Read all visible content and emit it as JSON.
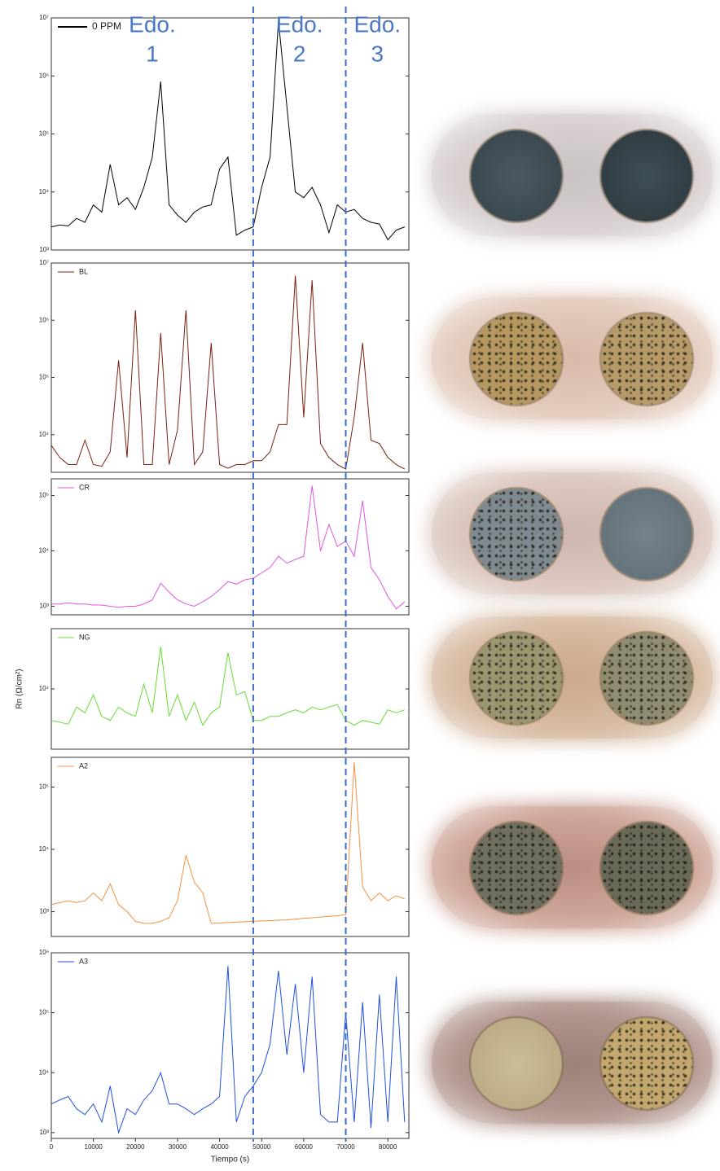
{
  "chart_data": [
    {
      "type": "line",
      "yscale": "log",
      "xlim": [
        0,
        85000
      ],
      "ylim": [
        1000,
        10000000
      ],
      "yticks": [
        {
          "value": 1000,
          "label": "10³"
        },
        {
          "value": 10000,
          "label": "10⁴"
        },
        {
          "value": 100000,
          "label": "10⁵"
        },
        {
          "value": 1000000,
          "label": "10⁶"
        },
        {
          "value": 10000000,
          "label": "10⁷"
        }
      ],
      "vlines": [
        48000,
        70000
      ],
      "annotations": [
        [
          "Edo.",
          "1"
        ],
        [
          "Edo.",
          "2"
        ],
        [
          "Edo.",
          "3"
        ]
      ],
      "x": [
        0,
        2000,
        4000,
        6000,
        8000,
        10000,
        12000,
        14000,
        16000,
        18000,
        20000,
        22000,
        24000,
        26000,
        28000,
        30000,
        32000,
        34000,
        36000,
        38000,
        40000,
        42000,
        44000,
        46000,
        48000,
        50000,
        52000,
        54000,
        56000,
        58000,
        60000,
        62000,
        64000,
        66000,
        68000,
        70000,
        72000,
        74000,
        76000,
        78000,
        80000,
        82000,
        84000
      ],
      "series": [
        {
          "name": "0 PPM",
          "color": "#000000",
          "values": [
            2500,
            2700,
            2600,
            3500,
            3000,
            6000,
            4500,
            30000,
            6000,
            8000,
            5000,
            12000,
            40000,
            800000,
            6000,
            4000,
            3000,
            4500,
            5500,
            6000,
            25000,
            40000,
            1800,
            2200,
            2500,
            12000,
            40000,
            9000000,
            300000,
            10000,
            8000,
            12000,
            6000,
            2000,
            6000,
            4500,
            5000,
            3500,
            3000,
            2800,
            1500,
            2200,
            2500
          ]
        }
      ]
    },
    {
      "type": "line",
      "yscale": "log",
      "xlim": [
        0,
        85000
      ],
      "ylim": [
        2200,
        10000000
      ],
      "yticks": [
        {
          "value": 10000,
          "label": "10⁴"
        },
        {
          "value": 100000,
          "label": "10⁵"
        },
        {
          "value": 1000000,
          "label": "10⁶"
        },
        {
          "value": 10000000,
          "label": "10⁷"
        }
      ],
      "x": [
        0,
        2000,
        4000,
        6000,
        8000,
        10000,
        12000,
        14000,
        16000,
        18000,
        20000,
        22000,
        24000,
        26000,
        28000,
        30000,
        32000,
        34000,
        36000,
        38000,
        40000,
        42000,
        44000,
        46000,
        48000,
        50000,
        52000,
        54000,
        56000,
        58000,
        60000,
        62000,
        64000,
        66000,
        68000,
        70000,
        72000,
        74000,
        76000,
        78000,
        80000,
        82000,
        84000
      ],
      "series": [
        {
          "name": "BL",
          "color": "#7a1f10",
          "values": [
            6500,
            4000,
            3000,
            3000,
            8000,
            3000,
            2800,
            5000,
            200000,
            4000,
            1500000,
            3000,
            3000,
            600000,
            3000,
            12000,
            1500000,
            3000,
            5000,
            400000,
            3000,
            2600,
            3000,
            3000,
            3500,
            3500,
            5000,
            15000,
            15000,
            6000000,
            20000,
            5000000,
            7000,
            4000,
            3000,
            2500,
            20000,
            400000,
            8000,
            7000,
            4000,
            3000,
            2500
          ]
        }
      ]
    },
    {
      "type": "line",
      "yscale": "log",
      "xlim": [
        0,
        85000
      ],
      "ylim": [
        700,
        200000
      ],
      "yticks": [
        {
          "value": 1000,
          "label": "10³"
        },
        {
          "value": 10000,
          "label": "10⁴"
        },
        {
          "value": 100000,
          "label": "10⁵"
        }
      ],
      "x": [
        0,
        2000,
        4000,
        6000,
        8000,
        10000,
        12000,
        14000,
        16000,
        18000,
        20000,
        22000,
        24000,
        26000,
        28000,
        30000,
        32000,
        34000,
        36000,
        38000,
        40000,
        42000,
        44000,
        46000,
        48000,
        50000,
        52000,
        54000,
        56000,
        58000,
        60000,
        62000,
        64000,
        66000,
        68000,
        70000,
        72000,
        74000,
        76000,
        78000,
        80000,
        82000,
        84000
      ],
      "series": [
        {
          "name": "CR",
          "color": "#e055e0",
          "values": [
            1100,
            1100,
            1150,
            1100,
            1100,
            1050,
            1050,
            1000,
            950,
            1000,
            1000,
            1100,
            1300,
            2600,
            1800,
            1300,
            1100,
            1000,
            1200,
            1500,
            2000,
            2800,
            2500,
            3000,
            3200,
            4000,
            5000,
            8000,
            6000,
            7000,
            8000,
            150000,
            10000,
            30000,
            12000,
            15000,
            8000,
            80000,
            5000,
            3000,
            1500,
            900,
            1200
          ]
        }
      ]
    },
    {
      "type": "line",
      "yscale": "log",
      "xlim": [
        0,
        85000
      ],
      "ylim": [
        1000,
        100000
      ],
      "yticks": [
        {
          "value": 10000,
          "label": "10⁴"
        }
      ],
      "ylabel": "Rn (Ω/cm²)",
      "x": [
        0,
        2000,
        4000,
        6000,
        8000,
        10000,
        12000,
        14000,
        16000,
        18000,
        20000,
        22000,
        24000,
        26000,
        28000,
        30000,
        32000,
        34000,
        36000,
        38000,
        40000,
        42000,
        44000,
        46000,
        48000,
        50000,
        52000,
        54000,
        56000,
        58000,
        60000,
        62000,
        64000,
        66000,
        68000,
        70000,
        72000,
        74000,
        76000,
        78000,
        80000,
        82000,
        84000
      ],
      "series": [
        {
          "name": "NG",
          "color": "#66dd33",
          "values": [
            3000,
            2800,
            2600,
            5000,
            4000,
            8000,
            3500,
            3000,
            5000,
            4000,
            3500,
            12000,
            4000,
            50000,
            3500,
            8000,
            3000,
            6000,
            2500,
            4000,
            5000,
            40000,
            8000,
            9000,
            3000,
            3000,
            3500,
            3500,
            4000,
            4500,
            4000,
            5000,
            4500,
            5000,
            5500,
            3000,
            2500,
            3000,
            2800,
            2600,
            4500,
            4000,
            4500
          ]
        }
      ]
    },
    {
      "type": "line",
      "yscale": "log",
      "xlim": [
        0,
        85000
      ],
      "ylim": [
        400,
        300000
      ],
      "yticks": [
        {
          "value": 1000,
          "label": "10³"
        },
        {
          "value": 10000,
          "label": "10⁴"
        },
        {
          "value": 100000,
          "label": "10⁵"
        }
      ],
      "x": [
        0,
        2000,
        4000,
        6000,
        8000,
        10000,
        12000,
        14000,
        16000,
        18000,
        20000,
        22000,
        24000,
        26000,
        28000,
        30000,
        32000,
        34000,
        36000,
        38000,
        40000,
        42000,
        44000,
        46000,
        48000,
        50000,
        52000,
        54000,
        56000,
        58000,
        60000,
        62000,
        64000,
        66000,
        68000,
        70000,
        72000,
        74000,
        76000,
        78000,
        80000,
        82000,
        84000
      ],
      "series": [
        {
          "name": "A2",
          "color": "#f39040",
          "values": [
            1300,
            1400,
            1500,
            1400,
            1500,
            2000,
            1500,
            2800,
            1300,
            1000,
            700,
            650,
            650,
            700,
            800,
            1500,
            8000,
            3000,
            2000,
            650,
            660,
            670,
            680,
            690,
            700,
            710,
            720,
            730,
            740,
            760,
            780,
            800,
            820,
            840,
            860,
            900,
            250000,
            2500,
            1500,
            2000,
            1500,
            1800,
            1600
          ]
        }
      ]
    },
    {
      "type": "line",
      "yscale": "log",
      "xlim": [
        0,
        85000
      ],
      "ylim": [
        800,
        1000000
      ],
      "yticks": [
        {
          "value": 1000,
          "label": "10³"
        },
        {
          "value": 10000,
          "label": "10⁴"
        },
        {
          "value": 100000,
          "label": "10⁵"
        },
        {
          "value": 1000000,
          "label": "10⁶"
        }
      ],
      "xticks": [
        0,
        10000,
        20000,
        30000,
        40000,
        50000,
        60000,
        70000,
        80000
      ],
      "xlabel": "Tiempo (s)",
      "x": [
        0,
        2000,
        4000,
        6000,
        8000,
        10000,
        12000,
        14000,
        16000,
        18000,
        20000,
        22000,
        24000,
        26000,
        28000,
        30000,
        32000,
        34000,
        36000,
        38000,
        40000,
        42000,
        44000,
        46000,
        48000,
        50000,
        52000,
        54000,
        56000,
        58000,
        60000,
        62000,
        64000,
        66000,
        68000,
        70000,
        72000,
        74000,
        76000,
        78000,
        80000,
        82000,
        84000
      ],
      "series": [
        {
          "name": "A3",
          "color": "#1f4fe0",
          "values": [
            3000,
            3500,
            4000,
            2500,
            2000,
            3000,
            1500,
            6000,
            1000,
            2500,
            2000,
            3500,
            5000,
            10000,
            3000,
            3000,
            2500,
            2000,
            2500,
            3000,
            4000,
            600000,
            1500,
            4000,
            6000,
            10000,
            30000,
            500000,
            20000,
            300000,
            10000,
            400000,
            2000,
            1500,
            1500,
            100000,
            1500,
            150000,
            1200,
            200000,
            1500,
            400000,
            1500
          ]
        }
      ]
    }
  ]
}
